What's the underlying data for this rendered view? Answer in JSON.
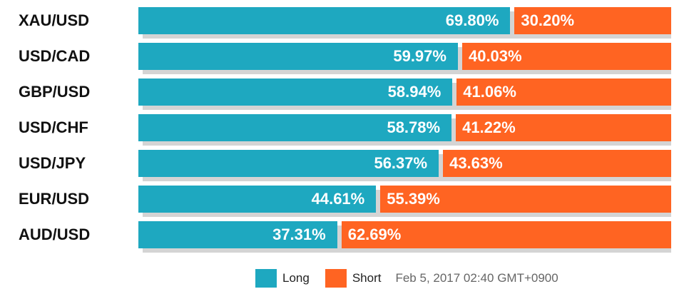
{
  "chart_data": {
    "type": "bar",
    "orientation": "horizontal",
    "stacked": true,
    "unit": "%",
    "categories": [
      "XAU/USD",
      "USD/CAD",
      "GBP/USD",
      "USD/CHF",
      "USD/JPY",
      "EUR/USD",
      "AUD/USD"
    ],
    "series": [
      {
        "name": "Long",
        "color": "#1ea8c0",
        "values": [
          69.8,
          59.97,
          58.94,
          58.78,
          56.37,
          44.61,
          37.31
        ],
        "labels": [
          "69.80%",
          "59.97%",
          "58.94%",
          "58.78%",
          "56.37%",
          "44.61%",
          "37.31%"
        ]
      },
      {
        "name": "Short",
        "color": "#ff6422",
        "values": [
          30.2,
          40.03,
          41.06,
          41.22,
          43.63,
          55.39,
          62.69
        ],
        "labels": [
          "30.20%",
          "40.03%",
          "41.06%",
          "41.22%",
          "43.63%",
          "55.39%",
          "62.69%"
        ]
      }
    ],
    "xlim": [
      0,
      100
    ],
    "legend_position": "bottom-center",
    "grid": false
  },
  "legend": {
    "long_label": "Long",
    "short_label": "Short",
    "timestamp": "Feb 5, 2017 02:40 GMT+0900"
  }
}
